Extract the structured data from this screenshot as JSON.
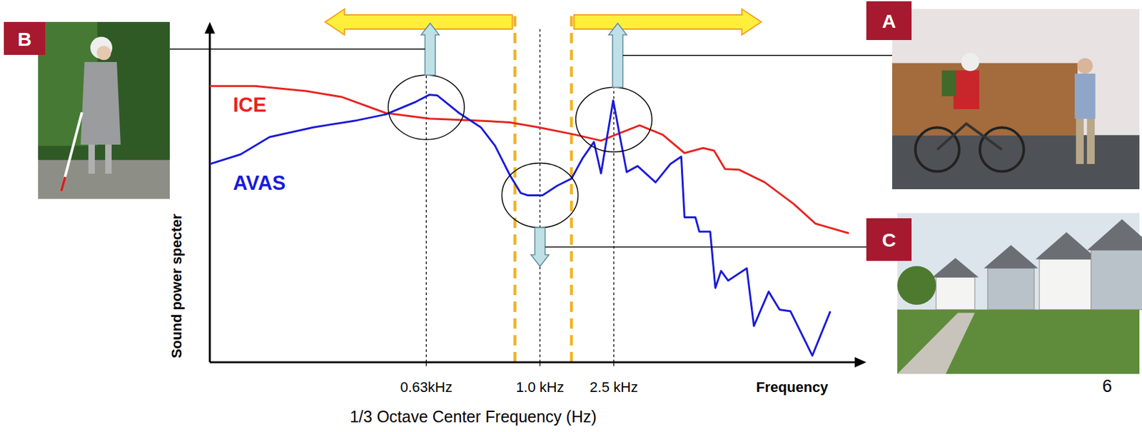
{
  "chart_data": {
    "type": "line",
    "xlabel": "1/3 Octave Center Frequency (Hz)",
    "ylabel": "Sound power specter",
    "x_end_label": "Frequency",
    "page_number": "6",
    "xlim": [
      0,
      100
    ],
    "ylim": [
      0,
      100
    ],
    "xticks": [
      {
        "value": 33.7,
        "label": "0.63kHz"
      },
      {
        "value": 51.4,
        "label": "1.0 kHz"
      },
      {
        "value": 62.9,
        "label": "2.5 kHz"
      }
    ],
    "grid": true,
    "tick_labels": "x",
    "band_edges": [
      47.5,
      56.3
    ],
    "callouts": [
      {
        "label": "B",
        "tick": 0,
        "direction": "up"
      },
      {
        "label": "A",
        "tick": 2,
        "direction": "up"
      },
      {
        "label": "C",
        "tick": 1,
        "direction": "down"
      }
    ],
    "series": [
      {
        "name": "ICE",
        "color": "#e8231f",
        "x": [
          0,
          7.0,
          15.0,
          20.6,
          27.4,
          34.2,
          41.0,
          46.7,
          51.2,
          56.9,
          60.9,
          63.2,
          66.9,
          70.5,
          73.9,
          76.8,
          78.5,
          80.2,
          82.4,
          86.4,
          90.9,
          94.3,
          99.5
        ],
        "values": [
          82.9,
          82.9,
          81.4,
          79.6,
          74.8,
          73.1,
          72.6,
          72.0,
          70.5,
          68.3,
          66.5,
          68.3,
          71.1,
          68.3,
          62.8,
          64.3,
          63.5,
          58.0,
          57.8,
          54.0,
          47.5,
          41.6,
          38.7
        ]
      },
      {
        "name": "AVAS",
        "color": "#1a1adc",
        "x": [
          0,
          4.8,
          9.3,
          16.1,
          22.9,
          27.4,
          32.0,
          34.2,
          35.4,
          38.8,
          42.2,
          44.4,
          46.7,
          48.4,
          49.5,
          51.8,
          54.1,
          56.3,
          58.0,
          59.8,
          60.9,
          62.0,
          62.8,
          63.9,
          64.9,
          66.6,
          69.4,
          71.7,
          73.4,
          73.9,
          75.6,
          76.2,
          77.9,
          78.7,
          79.6,
          80.7,
          83.6,
          84.7,
          87.0,
          88.7,
          90.4,
          93.8,
          96.6
        ],
        "values": [
          59.5,
          62.4,
          67.6,
          70.5,
          72.6,
          74.4,
          78.1,
          80.3,
          80.1,
          74.8,
          70.5,
          65.0,
          56.2,
          50.8,
          50.1,
          50.1,
          53.0,
          55.1,
          61.1,
          66.1,
          56.7,
          69.4,
          78.6,
          67.2,
          57.1,
          58.9,
          54.0,
          59.5,
          61.7,
          43.5,
          43.5,
          39.2,
          39.2,
          22.3,
          27.4,
          24.5,
          28.2,
          10.9,
          21.2,
          15.8,
          15.3,
          2.0,
          15.3
        ]
      }
    ]
  }
}
